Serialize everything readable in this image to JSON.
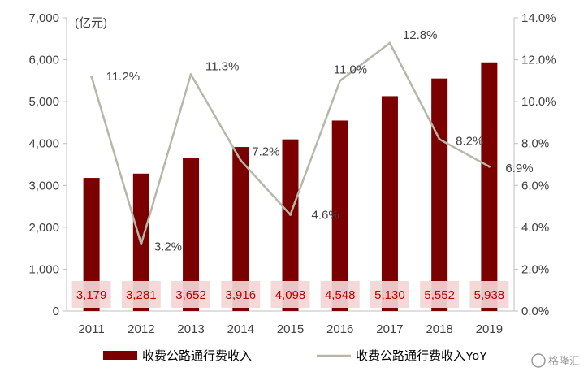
{
  "chart_data": {
    "type": "bar",
    "categories": [
      "2011",
      "2012",
      "2013",
      "2014",
      "2015",
      "2016",
      "2017",
      "2018",
      "2019"
    ],
    "series": [
      {
        "name": "收费公路通行费收入",
        "type": "bar",
        "axis": "left",
        "color": "#7b0000",
        "values": [
          3179,
          3281,
          3652,
          3916,
          4098,
          4548,
          5130,
          5552,
          5938
        ],
        "labels": [
          "3,179",
          "3,281",
          "3,652",
          "3,916",
          "4,098",
          "4,548",
          "5,130",
          "5,552",
          "5,938"
        ]
      },
      {
        "name": "收费公路通行费收入YoY",
        "type": "line",
        "axis": "right",
        "color": "#b7b7a9",
        "values": [
          11.2,
          3.2,
          11.3,
          7.2,
          4.6,
          11.0,
          12.8,
          8.2,
          6.9
        ],
        "labels": [
          "11.2%",
          "3.2%",
          "11.3%",
          "7.2%",
          "4.6%",
          "11.0%",
          "12.8%",
          "8.2%",
          "6.9%"
        ]
      }
    ],
    "left_axis": {
      "unit": "(亿元)",
      "ylim": [
        0,
        7000
      ],
      "ticks": [
        "0",
        "1,000",
        "2,000",
        "3,000",
        "4,000",
        "5,000",
        "6,000",
        "7,000"
      ]
    },
    "right_axis": {
      "ylim": [
        0,
        14
      ],
      "ticks": [
        "0.0%",
        "2.0%",
        "4.0%",
        "6.0%",
        "8.0%",
        "10.0%",
        "12.0%",
        "14.0%"
      ]
    },
    "grid": false,
    "legend": "bottom",
    "bar_label_bg": "#f4d6d6",
    "bar_label_color": "#c00000"
  },
  "watermark": "格隆汇"
}
